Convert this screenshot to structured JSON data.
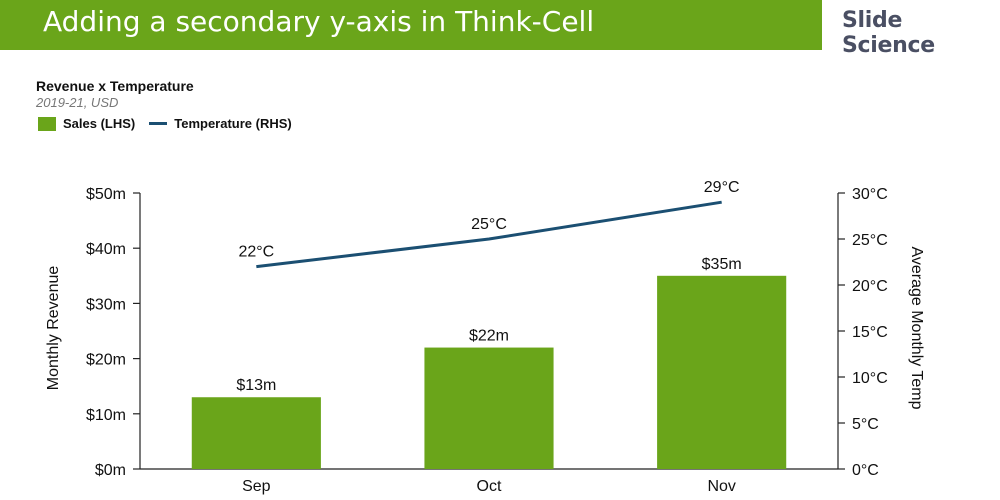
{
  "header": {
    "title": "Adding a secondary y-axis in Think-Cell",
    "brand": "Slide Science"
  },
  "colors": {
    "banner": "#6aa51a",
    "bar": "#6aa51a",
    "line": "#1b4f72"
  },
  "chart_data": {
    "type": "bar",
    "title": "Revenue x Temperature",
    "subtitle": "2019-21, USD",
    "categories": [
      "Sep",
      "Oct",
      "Nov"
    ],
    "series": [
      {
        "name": "Sales (LHS)",
        "type": "bar",
        "axis": "left",
        "values": [
          13,
          22,
          35
        ],
        "labels": [
          "$13m",
          "$22m",
          "$35m"
        ]
      },
      {
        "name": "Temperature (RHS)",
        "type": "line",
        "axis": "right",
        "values": [
          22,
          25,
          29
        ],
        "labels": [
          "22°C",
          "25°C",
          "29°C"
        ]
      }
    ],
    "ylabel": "Monthly Revenue",
    "y2label": "Average Monthly Temp",
    "ylim": [
      0,
      50
    ],
    "y2lim": [
      0,
      30
    ],
    "yticks": [
      "$0m",
      "$10m",
      "$20m",
      "$30m",
      "$40m",
      "$50m"
    ],
    "y2ticks": [
      "0°C",
      "5°C",
      "10°C",
      "15°C",
      "20°C",
      "25°C",
      "30°C"
    ],
    "legend_position": "top-left",
    "grid": false
  }
}
